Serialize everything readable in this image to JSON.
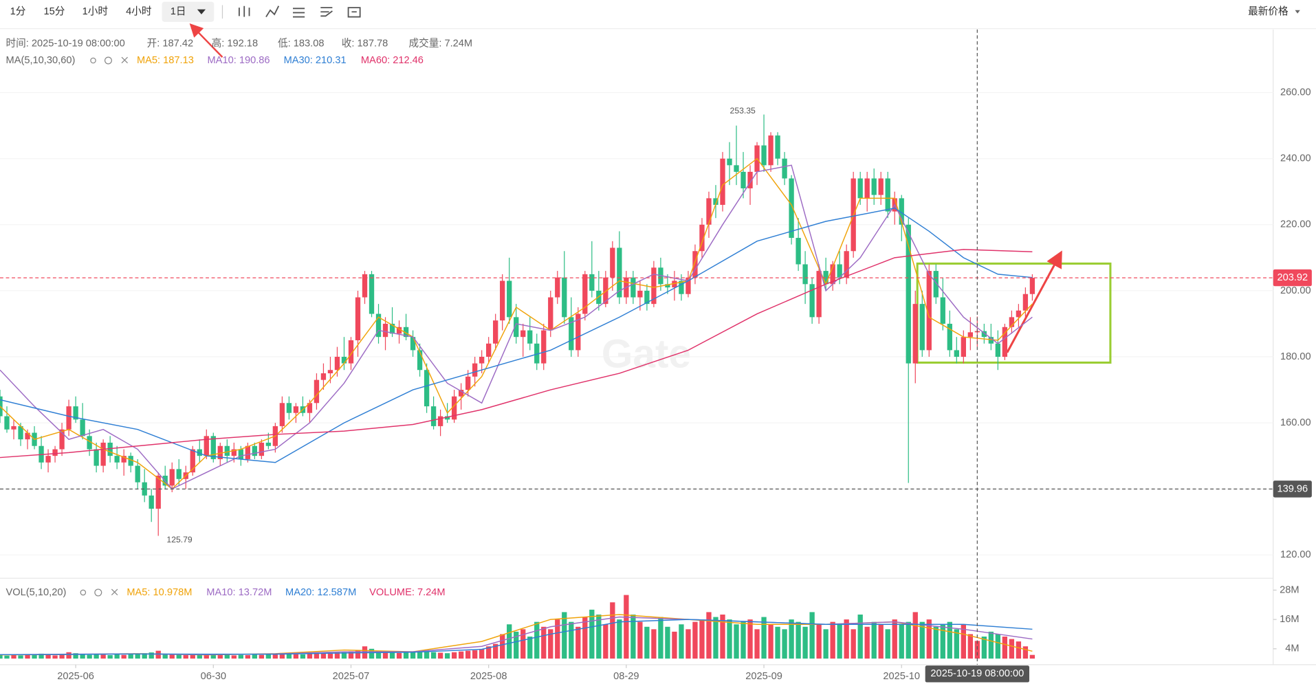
{
  "toolbar": {
    "intervals": [
      "1分",
      "15分",
      "1小时",
      "4小时",
      "1日"
    ],
    "price_type": "最新价格"
  },
  "chart_data": {
    "type": "candlestick",
    "info": [
      "时间: 2025-10-19 08:00:00",
      "开: 187.42",
      "高: 192.18",
      "低: 183.08",
      "收: 187.78",
      "成交量: 7.24M"
    ],
    "ma_title": "MA(5,10,30,60)",
    "watermark": "Gate",
    "xlim": [
      0,
      185
    ],
    "xticks": [
      {
        "value": 11,
        "label": "2025-06"
      },
      {
        "value": 31,
        "label": "06-30"
      },
      {
        "value": 51,
        "label": "2025-07"
      },
      {
        "value": 71,
        "label": "2025-08"
      },
      {
        "value": 91,
        "label": "08-29"
      },
      {
        "value": 111,
        "label": "2025-09"
      },
      {
        "value": 131,
        "label": "2025-10"
      }
    ],
    "ylim": [
      113.2,
      279.1
    ],
    "yticks": [
      {
        "value": 120,
        "label": "120.00"
      },
      {
        "value": 140,
        "label": "140.00"
      },
      {
        "value": 160,
        "label": "160.00"
      },
      {
        "value": 180,
        "label": "180.00"
      },
      {
        "value": 200,
        "label": "200.00"
      },
      {
        "value": 220,
        "label": "220.00"
      },
      {
        "value": 240,
        "label": "240.00"
      },
      {
        "value": 260,
        "label": "260.00"
      }
    ],
    "grid": true,
    "up_color": "#f0485c",
    "down_color": "#2dbd85",
    "last_price": 203.92,
    "crosshair": {
      "x": {
        "value": 142,
        "label": "2025-10-19 08:00:00"
      },
      "y": 139.96
    },
    "ohlc": [
      [
        168,
        170,
        160,
        162
      ],
      [
        162,
        165,
        157,
        158
      ],
      [
        158,
        161,
        155,
        159
      ],
      [
        159,
        160,
        153,
        155
      ],
      [
        155,
        158,
        152,
        157
      ],
      [
        157,
        159,
        152,
        153
      ],
      [
        153,
        156,
        146,
        148
      ],
      [
        148,
        152,
        145,
        150
      ],
      [
        150,
        153,
        148,
        152
      ],
      [
        152,
        160,
        150,
        158
      ],
      [
        158,
        167,
        156,
        165
      ],
      [
        165,
        168,
        160,
        161
      ],
      [
        161,
        166,
        155,
        156
      ],
      [
        156,
        158,
        150,
        152
      ],
      [
        152,
        154,
        145,
        147
      ],
      [
        147,
        155,
        145,
        154
      ],
      [
        154,
        156,
        148,
        150
      ],
      [
        150,
        153,
        146,
        148
      ],
      [
        148,
        152,
        144,
        150
      ],
      [
        150,
        151,
        145,
        147
      ],
      [
        147,
        149,
        140,
        142
      ],
      [
        142,
        146,
        136,
        138
      ],
      [
        138,
        140,
        130,
        134
      ],
      [
        134,
        145,
        125.79,
        144
      ],
      [
        144,
        147,
        140,
        141
      ],
      [
        141,
        148,
        139,
        146
      ],
      [
        146,
        149,
        141,
        143
      ],
      [
        143,
        147,
        140,
        145
      ],
      [
        145,
        153,
        144,
        152
      ],
      [
        152,
        155,
        148,
        150
      ],
      [
        150,
        158,
        149,
        156
      ],
      [
        156,
        157,
        148,
        149
      ],
      [
        149,
        154,
        147,
        153
      ],
      [
        153,
        155,
        148,
        150
      ],
      [
        150,
        154,
        148,
        152
      ],
      [
        152,
        153,
        147,
        149
      ],
      [
        149,
        154,
        148,
        153
      ],
      [
        153,
        154,
        149,
        150
      ],
      [
        150,
        155,
        149,
        154
      ],
      [
        154,
        157,
        152,
        153
      ],
      [
        153,
        160,
        151,
        159
      ],
      [
        159,
        168,
        157,
        166
      ],
      [
        166,
        168,
        161,
        163
      ],
      [
        163,
        166,
        160,
        165
      ],
      [
        165,
        168,
        162,
        163
      ],
      [
        163,
        167,
        160,
        166
      ],
      [
        166,
        175,
        164,
        173
      ],
      [
        173,
        178,
        170,
        175
      ],
      [
        175,
        180,
        172,
        176
      ],
      [
        176,
        183,
        174,
        180
      ],
      [
        180,
        186,
        176,
        178
      ],
      [
        178,
        186,
        176,
        185
      ],
      [
        185,
        200,
        180,
        198
      ],
      [
        198,
        206,
        196,
        205
      ],
      [
        205,
        206,
        192,
        193
      ],
      [
        193,
        196,
        184,
        186
      ],
      [
        186,
        192,
        182,
        190
      ],
      [
        190,
        195,
        186,
        187
      ],
      [
        187,
        191,
        184,
        189
      ],
      [
        189,
        193,
        185,
        186
      ],
      [
        186,
        188,
        180,
        182
      ],
      [
        182,
        184,
        174,
        176
      ],
      [
        176,
        178,
        163,
        165
      ],
      [
        165,
        168,
        158,
        159
      ],
      [
        159,
        164,
        156,
        162
      ],
      [
        162,
        166,
        160,
        161
      ],
      [
        161,
        170,
        160,
        168
      ],
      [
        168,
        172,
        164,
        170
      ],
      [
        170,
        176,
        168,
        174
      ],
      [
        174,
        180,
        171,
        178
      ],
      [
        178,
        182,
        175,
        180
      ],
      [
        180,
        186,
        178,
        184
      ],
      [
        184,
        193,
        182,
        191
      ],
      [
        191,
        205,
        188,
        203
      ],
      [
        203,
        210,
        190,
        192
      ],
      [
        192,
        196,
        184,
        186
      ],
      [
        186,
        190,
        180,
        188
      ],
      [
        188,
        192,
        182,
        184
      ],
      [
        184,
        187,
        176,
        178
      ],
      [
        178,
        190,
        176,
        188
      ],
      [
        188,
        200,
        186,
        198
      ],
      [
        198,
        206,
        196,
        204
      ],
      [
        204,
        212,
        190,
        192
      ],
      [
        192,
        198,
        180,
        182
      ],
      [
        182,
        195,
        180,
        193
      ],
      [
        193,
        206,
        191,
        205
      ],
      [
        205,
        215,
        198,
        200
      ],
      [
        200,
        206,
        194,
        196
      ],
      [
        196,
        206,
        195,
        204
      ],
      [
        204,
        215,
        200,
        213
      ],
      [
        213,
        218,
        196,
        198
      ],
      [
        198,
        206,
        196,
        204
      ],
      [
        204,
        206,
        196,
        198
      ],
      [
        198,
        203,
        194,
        200
      ],
      [
        200,
        202,
        194,
        196
      ],
      [
        196,
        209,
        195,
        207
      ],
      [
        207,
        210,
        200,
        202
      ],
      [
        202,
        205,
        199,
        201
      ],
      [
        201,
        206,
        197,
        203
      ],
      [
        203,
        205,
        197,
        199
      ],
      [
        199,
        206,
        198,
        204
      ],
      [
        204,
        214,
        202,
        212
      ],
      [
        212,
        222,
        210,
        220
      ],
      [
        220,
        230,
        216,
        228
      ],
      [
        228,
        232,
        222,
        226
      ],
      [
        226,
        242,
        224,
        240
      ],
      [
        240,
        245,
        232,
        238
      ],
      [
        238,
        250,
        232,
        236
      ],
      [
        236,
        242,
        228,
        231
      ],
      [
        231,
        238,
        226,
        236
      ],
      [
        236,
        245,
        232,
        244
      ],
      [
        244,
        253.35,
        236,
        238
      ],
      [
        238,
        248,
        236,
        247
      ],
      [
        247,
        248,
        238,
        240
      ],
      [
        240,
        242,
        232,
        234
      ],
      [
        234,
        235,
        214,
        216
      ],
      [
        216,
        222,
        206,
        208
      ],
      [
        208,
        212,
        196,
        202
      ],
      [
        202,
        204,
        190,
        192
      ],
      [
        192,
        208,
        190,
        206
      ],
      [
        206,
        210,
        200,
        202
      ],
      [
        202,
        209,
        200,
        208
      ],
      [
        208,
        212,
        202,
        204
      ],
      [
        204,
        214,
        202,
        212
      ],
      [
        212,
        236,
        210,
        234
      ],
      [
        234,
        236,
        226,
        228
      ],
      [
        228,
        236,
        224,
        234
      ],
      [
        234,
        237,
        226,
        229
      ],
      [
        229,
        236,
        226,
        234
      ],
      [
        234,
        236,
        222,
        224
      ],
      [
        224,
        230,
        220,
        228
      ],
      [
        228,
        229,
        215,
        220
      ],
      [
        220,
        222,
        141.8,
        178
      ],
      [
        178,
        200,
        172,
        196
      ],
      [
        196,
        200,
        180,
        182
      ],
      [
        182,
        208,
        180,
        206
      ],
      [
        206,
        208,
        196,
        198
      ],
      [
        198,
        204,
        188,
        190
      ],
      [
        190,
        194,
        180,
        182
      ],
      [
        182,
        186,
        178,
        180
      ],
      [
        180,
        188,
        178,
        186
      ],
      [
        186,
        192,
        182,
        187.42
      ],
      [
        187.42,
        192.18,
        183.08,
        187.78
      ],
      [
        187.78,
        190,
        184,
        186
      ],
      [
        186,
        190,
        182,
        184
      ],
      [
        184,
        188,
        176,
        180
      ],
      [
        180,
        190,
        179,
        189
      ],
      [
        189,
        194,
        187,
        192
      ],
      [
        192,
        196,
        189,
        194
      ],
      [
        194,
        201,
        192,
        199
      ],
      [
        199,
        205,
        197,
        203.92
      ]
    ],
    "series": [
      {
        "name": "MA5: 187.13",
        "color": "#f0a30a",
        "x": [
          0,
          5,
          10,
          15,
          20,
          25,
          30,
          35,
          40,
          45,
          50,
          55,
          60,
          65,
          70,
          75,
          80,
          85,
          90,
          95,
          100,
          105,
          110,
          115,
          120,
          125,
          130,
          135,
          140,
          145,
          150
        ],
        "values": [
          165,
          155,
          158,
          152,
          148,
          140,
          150,
          152,
          156,
          166,
          178,
          192,
          186,
          163,
          174,
          195,
          188,
          195,
          203,
          201,
          203,
          232,
          240,
          226,
          202,
          228,
          228,
          192,
          186,
          185,
          196
        ]
      },
      {
        "name": "MA10: 190.86",
        "color": "#9d6bc4",
        "x": [
          0,
          5,
          10,
          15,
          20,
          25,
          30,
          35,
          40,
          45,
          50,
          55,
          60,
          65,
          70,
          75,
          80,
          85,
          90,
          95,
          100,
          105,
          110,
          115,
          120,
          125,
          130,
          135,
          140,
          145,
          150
        ],
        "values": [
          176,
          165,
          155,
          158,
          152,
          140,
          145,
          150,
          152,
          160,
          172,
          188,
          186,
          172,
          166,
          190,
          188,
          192,
          200,
          205,
          203,
          220,
          236,
          238,
          200,
          210,
          226,
          205,
          192,
          184,
          192
        ]
      },
      {
        "name": "MA30: 210.31",
        "color": "#2f7fd4",
        "x": [
          0,
          10,
          20,
          30,
          40,
          50,
          60,
          70,
          80,
          90,
          100,
          110,
          120,
          130,
          135,
          140,
          145,
          150
        ],
        "values": [
          167,
          162,
          158,
          150,
          148,
          160,
          170,
          176,
          182,
          192,
          203,
          215,
          221,
          225,
          218,
          210,
          205,
          204
        ]
      },
      {
        "name": "MA60: 212.46",
        "color": "#e0326a",
        "x": [
          0,
          10,
          20,
          30,
          40,
          50,
          60,
          70,
          80,
          90,
          100,
          110,
          120,
          130,
          140,
          150
        ],
        "values": [
          149.5,
          151,
          153,
          155,
          156.5,
          157.5,
          159.5,
          164,
          170,
          175,
          182,
          193,
          202,
          210,
          212.5,
          211.8
        ]
      }
    ],
    "volume": {
      "title": "VOL(5,10,20)",
      "legend": "VOLUME: 7.24M",
      "ylim": [
        -2.5,
        32.5
      ],
      "yticks": [
        {
          "value": 4,
          "label": "4M"
        },
        {
          "value": 16,
          "label": "16M"
        },
        {
          "value": 28,
          "label": "28M"
        }
      ],
      "values": [
        1.5,
        1.2,
        1.8,
        1.3,
        1.6,
        1.4,
        2.0,
        1.5,
        1.3,
        1.7,
        2.6,
        2.2,
        1.8,
        1.5,
        1.9,
        1.6,
        1.4,
        1.7,
        1.5,
        1.8,
        2.0,
        2.2,
        2.5,
        3.2,
        1.8,
        1.6,
        1.7,
        1.4,
        1.9,
        1.6,
        1.7,
        1.5,
        1.4,
        1.6,
        1.3,
        1.5,
        1.4,
        1.6,
        1.5,
        1.7,
        2.1,
        2.3,
        1.9,
        1.8,
        1.7,
        2.0,
        2.4,
        2.2,
        2.3,
        2.5,
        2.6,
        2.9,
        3.5,
        5.0,
        4.0,
        3.0,
        2.8,
        2.5,
        2.3,
        2.4,
        2.6,
        2.8,
        3.0,
        2.6,
        2.4,
        2.2,
        2.6,
        2.9,
        3.2,
        3.4,
        3.8,
        5.0,
        6.0,
        10,
        14,
        11,
        12,
        9,
        15,
        13,
        12,
        16,
        19,
        15,
        13,
        17,
        20,
        18,
        14,
        23,
        16,
        26,
        18,
        15,
        13,
        12,
        17,
        13,
        11,
        14,
        12,
        15,
        16,
        19,
        17,
        18,
        16,
        14,
        15,
        16,
        12,
        17,
        14,
        13,
        12,
        16,
        15,
        13,
        19,
        14,
        12,
        15,
        14,
        16,
        12,
        18,
        13,
        15,
        14,
        12,
        16,
        14,
        15,
        19,
        15,
        16,
        13,
        14,
        15,
        12,
        14,
        10,
        7.24,
        9,
        11,
        10,
        9,
        8,
        7,
        5,
        1.5
      ],
      "series": [
        {
          "name": "MA5: 10.978M",
          "color": "#f0a30a",
          "x": [
            0,
            10,
            20,
            30,
            40,
            50,
            60,
            70,
            80,
            90,
            100,
            110,
            120,
            130,
            140,
            150
          ],
          "values": [
            1.5,
            1.7,
            2.0,
            1.5,
            2.0,
            3.5,
            2.8,
            7,
            16,
            18,
            16,
            14,
            14,
            15,
            10,
            3
          ]
        },
        {
          "name": "MA10: 13.72M",
          "color": "#9d6bc4",
          "x": [
            0,
            10,
            20,
            30,
            40,
            50,
            60,
            70,
            80,
            90,
            100,
            110,
            120,
            130,
            140,
            150
          ],
          "values": [
            1.6,
            1.8,
            1.9,
            1.6,
            1.9,
            2.8,
            2.8,
            5,
            13,
            17,
            16,
            15,
            14,
            15,
            12,
            8
          ]
        },
        {
          "name": "MA20: 12.587M",
          "color": "#2f7fd4",
          "x": [
            0,
            10,
            20,
            30,
            40,
            50,
            60,
            70,
            80,
            90,
            100,
            110,
            120,
            130,
            140,
            150
          ],
          "values": [
            1.6,
            1.7,
            1.9,
            1.8,
            1.8,
            2.3,
            2.6,
            3.8,
            10,
            15,
            16,
            15,
            14,
            14,
            14,
            12
          ]
        }
      ]
    }
  }
}
